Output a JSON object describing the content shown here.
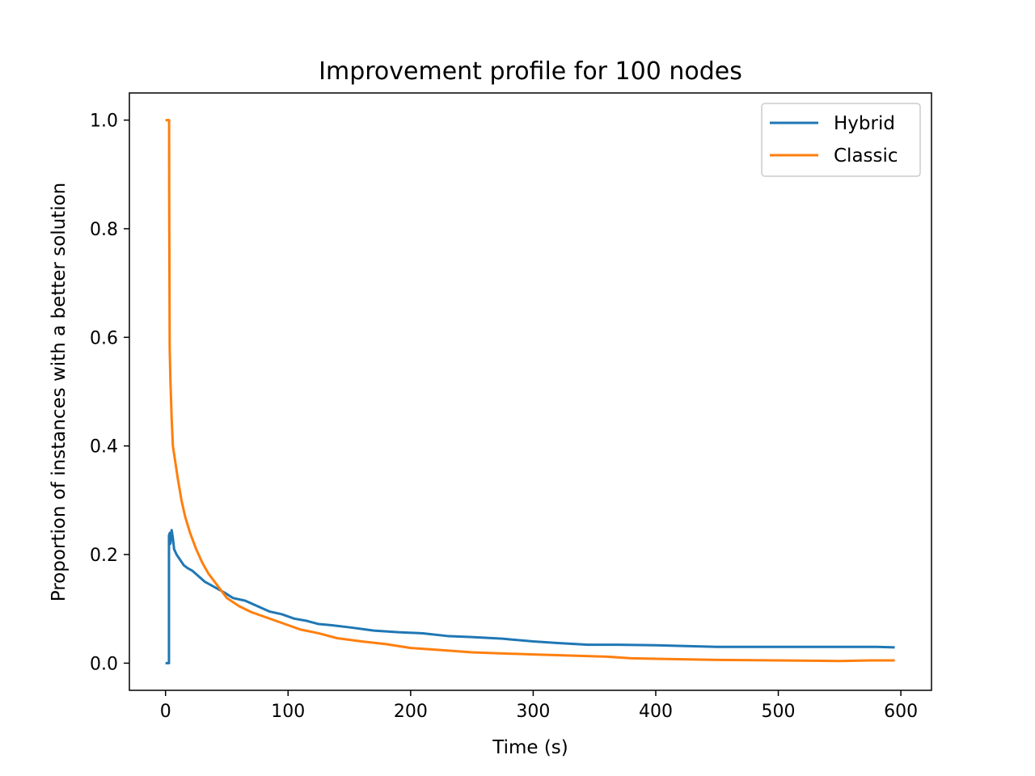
{
  "chart_data": {
    "type": "line",
    "title": "Improvement profile for 100 nodes",
    "xlabel": "Time (s)",
    "ylabel": "Proportion of instances with a better solution",
    "xlim": [
      -29.5,
      625
    ],
    "ylim": [
      -0.05,
      1.05
    ],
    "xticks": [
      0,
      100,
      200,
      300,
      400,
      500,
      600
    ],
    "yticks": [
      0.0,
      0.2,
      0.4,
      0.6,
      0.8,
      1.0
    ],
    "grid": false,
    "legend_position": "top-right",
    "series": [
      {
        "name": "Hybrid",
        "color": "#1f77b4",
        "points": [
          [
            0,
            0.0
          ],
          [
            2.8,
            0.0
          ],
          [
            2.8,
            0.235
          ],
          [
            3.5,
            0.24
          ],
          [
            4,
            0.22
          ],
          [
            5,
            0.245
          ],
          [
            6,
            0.23
          ],
          [
            7,
            0.21
          ],
          [
            9,
            0.2
          ],
          [
            12,
            0.19
          ],
          [
            15,
            0.18
          ],
          [
            18,
            0.175
          ],
          [
            22,
            0.17
          ],
          [
            27,
            0.16
          ],
          [
            32,
            0.15
          ],
          [
            40,
            0.14
          ],
          [
            48,
            0.13
          ],
          [
            55,
            0.12
          ],
          [
            65,
            0.115
          ],
          [
            75,
            0.105
          ],
          [
            85,
            0.095
          ],
          [
            95,
            0.09
          ],
          [
            105,
            0.082
          ],
          [
            115,
            0.078
          ],
          [
            125,
            0.072
          ],
          [
            135,
            0.07
          ],
          [
            150,
            0.066
          ],
          [
            170,
            0.06
          ],
          [
            190,
            0.057
          ],
          [
            210,
            0.055
          ],
          [
            230,
            0.05
          ],
          [
            250,
            0.048
          ],
          [
            275,
            0.045
          ],
          [
            300,
            0.04
          ],
          [
            320,
            0.037
          ],
          [
            345,
            0.034
          ],
          [
            370,
            0.034
          ],
          [
            400,
            0.033
          ],
          [
            450,
            0.03
          ],
          [
            500,
            0.03
          ],
          [
            550,
            0.03
          ],
          [
            580,
            0.03
          ],
          [
            595,
            0.029
          ]
        ]
      },
      {
        "name": "Classic",
        "color": "#ff7f0e",
        "points": [
          [
            0,
            1.0
          ],
          [
            2.9,
            1.0
          ],
          [
            3.0,
            0.85
          ],
          [
            3.4,
            0.58
          ],
          [
            4,
            0.52
          ],
          [
            5,
            0.45
          ],
          [
            6,
            0.4
          ],
          [
            8,
            0.37
          ],
          [
            10,
            0.34
          ],
          [
            13,
            0.3
          ],
          [
            16,
            0.27
          ],
          [
            20,
            0.24
          ],
          [
            25,
            0.21
          ],
          [
            30,
            0.185
          ],
          [
            35,
            0.165
          ],
          [
            40,
            0.15
          ],
          [
            45,
            0.135
          ],
          [
            50,
            0.12
          ],
          [
            60,
            0.105
          ],
          [
            70,
            0.094
          ],
          [
            80,
            0.086
          ],
          [
            90,
            0.078
          ],
          [
            100,
            0.07
          ],
          [
            110,
            0.062
          ],
          [
            125,
            0.055
          ],
          [
            140,
            0.046
          ],
          [
            160,
            0.04
          ],
          [
            180,
            0.035
          ],
          [
            200,
            0.028
          ],
          [
            225,
            0.024
          ],
          [
            250,
            0.02
          ],
          [
            275,
            0.018
          ],
          [
            300,
            0.016
          ],
          [
            330,
            0.014
          ],
          [
            360,
            0.012
          ],
          [
            380,
            0.009
          ],
          [
            400,
            0.008
          ],
          [
            450,
            0.006
          ],
          [
            500,
            0.005
          ],
          [
            550,
            0.004
          ],
          [
            575,
            0.005
          ],
          [
            595,
            0.005
          ]
        ]
      }
    ]
  }
}
